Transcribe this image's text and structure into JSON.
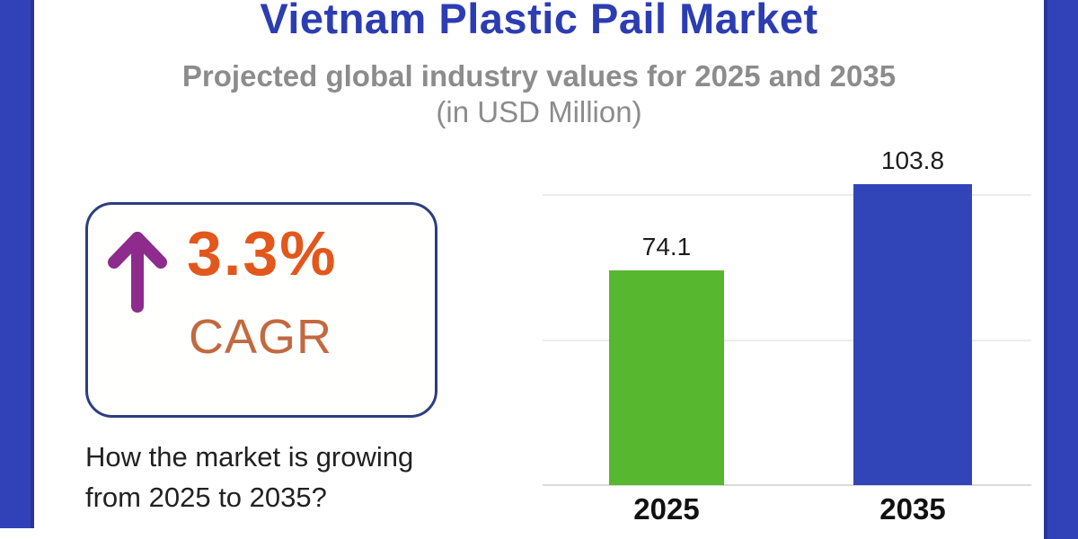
{
  "page": {
    "border_color": "#3141B7",
    "background": "#FFFFFF"
  },
  "header": {
    "title": "Vietnam Plastic Pail Market",
    "title_color": "#2C3DB2",
    "subtitle": "Projected global industry values for 2025 and 2035",
    "subtitle_unit": "(in USD Million)",
    "subtitle_color": "#8C8C8C"
  },
  "cagr": {
    "value": "3.3%",
    "label": "CAGR",
    "value_color": "#E2571C",
    "label_color": "#C2693F",
    "arrow_icon": "up-arrow",
    "arrow_color": "#8E2B8C",
    "border_color": "#2C3E80"
  },
  "question": "How the market is growing from 2025 to 2035?",
  "chart_data": {
    "type": "bar",
    "categories": [
      "2025",
      "2035"
    ],
    "values": [
      74.1,
      103.8
    ],
    "value_labels": [
      "74.1",
      "103.8"
    ],
    "bar_colors": [
      "#57B72F",
      "#3245B8"
    ],
    "title": "Vietnam Plastic Pail Market",
    "subtitle": "Projected global industry values for 2025 and 2035 (in USD Million)",
    "xlabel": "",
    "ylabel": "",
    "ylim": [
      0,
      110
    ],
    "gridlines": [
      0,
      50,
      100
    ],
    "grid": true,
    "legend": false,
    "grid_color": "#ECECEC",
    "baseline_color": "#DBDBDB",
    "label_color": "#1C1C1C"
  }
}
